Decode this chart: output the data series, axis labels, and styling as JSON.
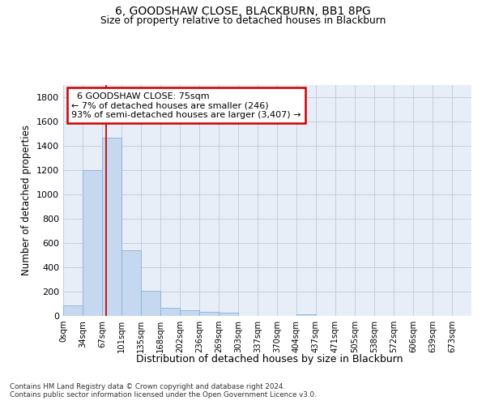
{
  "title1": "6, GOODSHAW CLOSE, BLACKBURN, BB1 8PG",
  "title2": "Size of property relative to detached houses in Blackburn",
  "xlabel": "Distribution of detached houses by size in Blackburn",
  "ylabel": "Number of detached properties",
  "footnote1": "Contains HM Land Registry data © Crown copyright and database right 2024.",
  "footnote2": "Contains public sector information licensed under the Open Government Licence v3.0.",
  "annotation_title": "6 GOODSHAW CLOSE: 75sqm",
  "annotation_line1": "← 7% of detached houses are smaller (246)",
  "annotation_line2": "93% of semi-detached houses are larger (3,407) →",
  "bar_color": "#c5d8f0",
  "bar_edge_color": "#8ab0d8",
  "vline_color": "#cc0000",
  "annotation_box_edgecolor": "#cc0000",
  "bin_labels": [
    "0sqm",
    "34sqm",
    "67sqm",
    "101sqm",
    "135sqm",
    "168sqm",
    "202sqm",
    "236sqm",
    "269sqm",
    "303sqm",
    "337sqm",
    "370sqm",
    "404sqm",
    "437sqm",
    "471sqm",
    "505sqm",
    "538sqm",
    "572sqm",
    "606sqm",
    "639sqm",
    "673sqm"
  ],
  "bar_values": [
    90,
    1200,
    1470,
    540,
    205,
    65,
    45,
    35,
    28,
    0,
    0,
    0,
    12,
    0,
    0,
    0,
    0,
    0,
    0,
    0,
    0
  ],
  "ylim": [
    0,
    1900
  ],
  "vline_x": 2.2,
  "figsize": [
    6.0,
    5.0
  ],
  "dpi": 100,
  "background_color": "#e8eef8",
  "grid_color": "#c0c8d8"
}
